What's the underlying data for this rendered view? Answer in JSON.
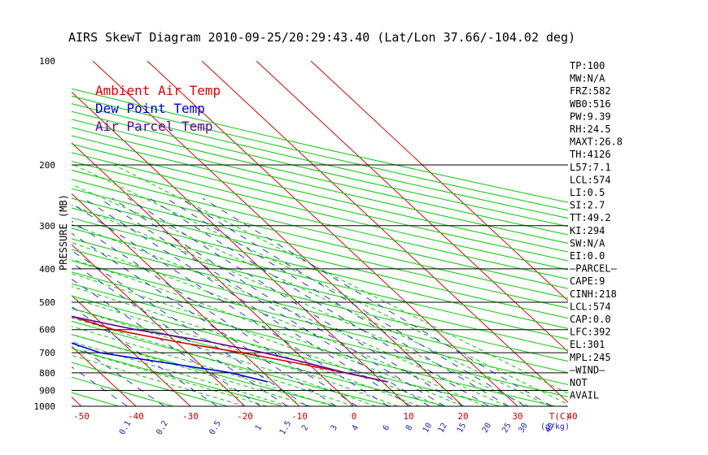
{
  "chart_data": {
    "type": "skewt",
    "title": "AIRS SkewT Diagram 2010-09-25/20:29:43.40 (Lat/Lon 37.66/-104.02 deg)",
    "ylabel": "PRESSURE (MB)",
    "xlabel": "T(C)",
    "mixing_ratio_label": "(g/kg)",
    "pressure_levels": [
      100,
      200,
      300,
      400,
      500,
      600,
      700,
      800,
      900,
      1000
    ],
    "pressure_range": [
      100,
      1000
    ],
    "top_temperature_ticks": [
      -120,
      -110,
      -100,
      -90,
      -80,
      -70,
      -60,
      -50,
      -40
    ],
    "bottom_temperature_ticks": [
      -50,
      -40,
      -30,
      -20,
      -10,
      0,
      10,
      20,
      30,
      40
    ],
    "mixing_ratio_ticks": [
      "0.1",
      "0.2",
      "0.5",
      "1",
      "1.5",
      "2",
      "3",
      "4",
      "6",
      "8",
      "10",
      "12",
      "15",
      "20",
      "25",
      "30",
      "40"
    ],
    "legend": [
      {
        "label": "Ambient Air Temp",
        "color": "#dd0000"
      },
      {
        "label": "Dew Point Temp",
        "color": "#0000dd"
      },
      {
        "label": "Air Parcel Temp",
        "color": "#660099"
      }
    ],
    "series": [
      {
        "name": "Ambient Air Temp",
        "color": "#dd0000",
        "points": [
          [
            100,
            -71
          ],
          [
            130,
            -74
          ],
          [
            160,
            -76
          ],
          [
            200,
            -78
          ],
          [
            250,
            -73
          ],
          [
            300,
            -67
          ],
          [
            350,
            -60
          ],
          [
            400,
            -52
          ],
          [
            450,
            -46
          ],
          [
            500,
            -40
          ],
          [
            550,
            -34
          ],
          [
            600,
            -29
          ],
          [
            650,
            -20
          ],
          [
            700,
            -10
          ],
          [
            750,
            -2
          ],
          [
            800,
            5
          ],
          [
            850,
            11
          ]
        ]
      },
      {
        "name": "Dew Point Temp",
        "color": "#0000dd",
        "points": [
          [
            100,
            -90
          ],
          [
            150,
            -97
          ],
          [
            200,
            -102
          ],
          [
            250,
            -103
          ],
          [
            300,
            -97
          ],
          [
            350,
            -92
          ],
          [
            400,
            -88
          ],
          [
            500,
            -63
          ],
          [
            600,
            -44
          ],
          [
            700,
            -36
          ],
          [
            800,
            -16
          ],
          [
            850,
            -11
          ]
        ]
      },
      {
        "name": "Air Parcel Temp",
        "color": "#660099",
        "points": [
          [
            100,
            -132
          ],
          [
            150,
            -122
          ],
          [
            200,
            -108
          ],
          [
            250,
            -89
          ],
          [
            300,
            -75
          ],
          [
            350,
            -62
          ],
          [
            400,
            -52
          ],
          [
            450,
            -46
          ],
          [
            500,
            -40
          ],
          [
            550,
            -34
          ],
          [
            600,
            -25
          ],
          [
            650,
            -14
          ],
          [
            700,
            -6
          ],
          [
            750,
            0
          ],
          [
            800,
            5
          ],
          [
            850,
            11
          ]
        ]
      }
    ],
    "grid": true
  },
  "indices": [
    "TP:100",
    "MW:N/A",
    "FRZ:582",
    "WB0:516",
    "PW:9.39",
    "RH:24.5",
    "MAXT:26.8",
    "TH:4126",
    "L57:7.1",
    "LCL:574",
    "LI:0.5",
    "SI:2.7",
    "TT:49.2",
    "KI:294",
    "SW:N/A",
    "EI:0.0",
    "–PARCEL–",
    "CAPE:9",
    "CINH:218",
    "LCL:574",
    "CAP:0.0",
    "LFC:392",
    "EL:301",
    "MPL:245",
    "–WIND–",
    "NOT",
    "AVAIL"
  ],
  "colors": {
    "isotherm": "#dd0000",
    "dry_adiabat": "#00cc00",
    "moist_adiabat": "#00cc00",
    "mixing_ratio": "#3333cc",
    "isobar": "#000000"
  }
}
